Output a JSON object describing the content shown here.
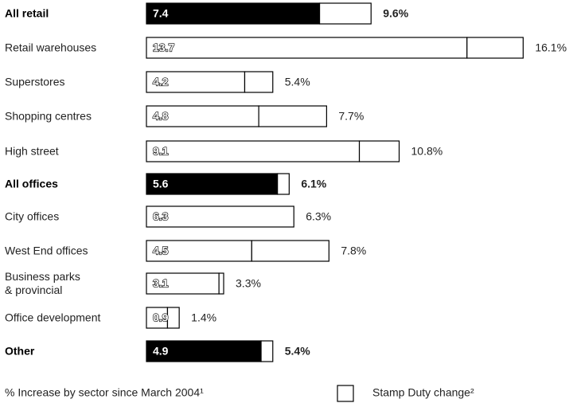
{
  "chart_data": {
    "type": "stacked-bar-horizontal",
    "categories": [
      "All retail",
      "Retail warehouses",
      "Superstores",
      "Shopping centres",
      "High street",
      "All offices",
      "City offices",
      "West End offices",
      "Business parks\n& provincial",
      "Office development",
      "Other"
    ],
    "highlight": [
      true,
      false,
      false,
      false,
      false,
      true,
      false,
      false,
      false,
      false,
      true
    ],
    "series": [
      {
        "name": "% Increase by sector since March 2004¹",
        "color": "#000000",
        "values": [
          7.4,
          13.7,
          4.2,
          4.8,
          9.1,
          5.6,
          6.3,
          4.5,
          3.1,
          0.9,
          4.9
        ]
      },
      {
        "name": "Stamp Duty change²",
        "color": "#ffffff",
        "values": [
          2.2,
          2.4,
          1.2,
          2.9,
          1.7,
          0.5,
          0.0,
          3.3,
          0.2,
          0.5,
          0.5
        ]
      }
    ],
    "totals": [
      9.6,
      16.1,
      5.4,
      7.7,
      10.8,
      6.1,
      6.3,
      7.8,
      3.3,
      1.4,
      5.4
    ],
    "total_labels": [
      "9.6%",
      "16.1%",
      "5.4%",
      "7.7%",
      "10.8%",
      "6.1%",
      "6.3%",
      "7.8%",
      "3.3%",
      "1.4%",
      "5.4%"
    ],
    "xlim": [
      0,
      18
    ]
  }
}
